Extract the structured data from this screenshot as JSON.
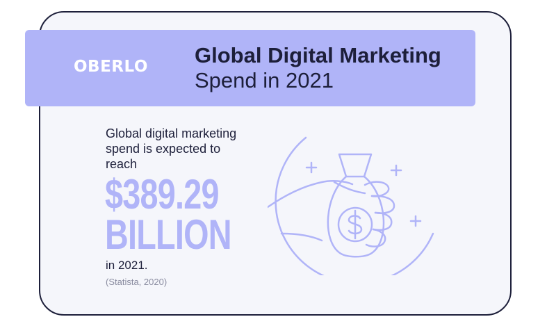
{
  "brand": {
    "logo_text": "OBERLO"
  },
  "header": {
    "title_line1": "Global Digital Marketing",
    "title_line2": "Spend in 2021"
  },
  "stat": {
    "intro_text": "Global digital marketing spend is expected to reach",
    "amount_line1": "$389.29",
    "amount_line2": "BILLION",
    "year_text": "in 2021.",
    "source_text": "(Statista, 2020)"
  },
  "illustration": {
    "icon": "hand-holding-money-bag-icon"
  },
  "colors": {
    "accent": "#b0b4f8",
    "text_dark": "#1d1f3a",
    "card_background": "#f5f6fb",
    "source_text": "#8a8ca0"
  }
}
